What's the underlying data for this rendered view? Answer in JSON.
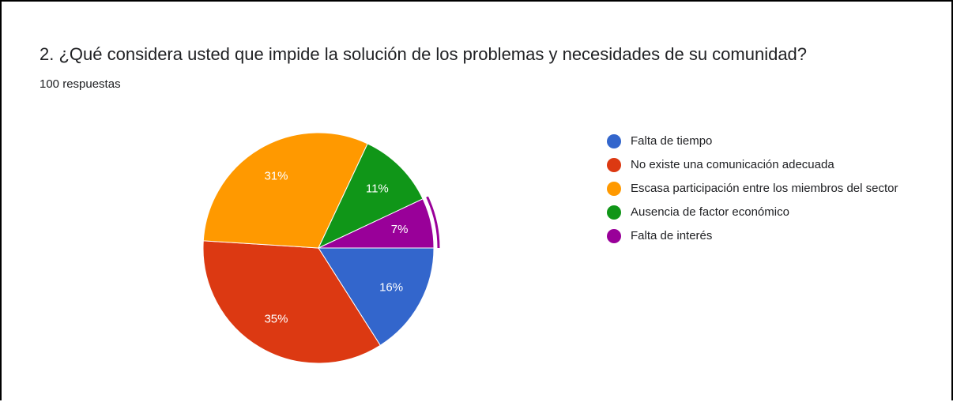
{
  "chart_data": {
    "type": "pie",
    "title": "2. ¿Qué considera usted que impide la solución de los problemas y necesidades de su comunidad?",
    "subtitle": "100 respuestas",
    "categories": [
      "Falta de tiempo",
      "No existe una comunicación adecuada",
      "Escasa participación entre los miembros del sector",
      "Ausencia de factor económico",
      "Falta de interés"
    ],
    "values": [
      16,
      35,
      31,
      11,
      7
    ],
    "value_labels": [
      "16%",
      "35%",
      "31%",
      "11%",
      "7%"
    ],
    "colors": [
      "#3366cc",
      "#dc3912",
      "#ff9900",
      "#109618",
      "#990099"
    ],
    "legend": "right"
  }
}
